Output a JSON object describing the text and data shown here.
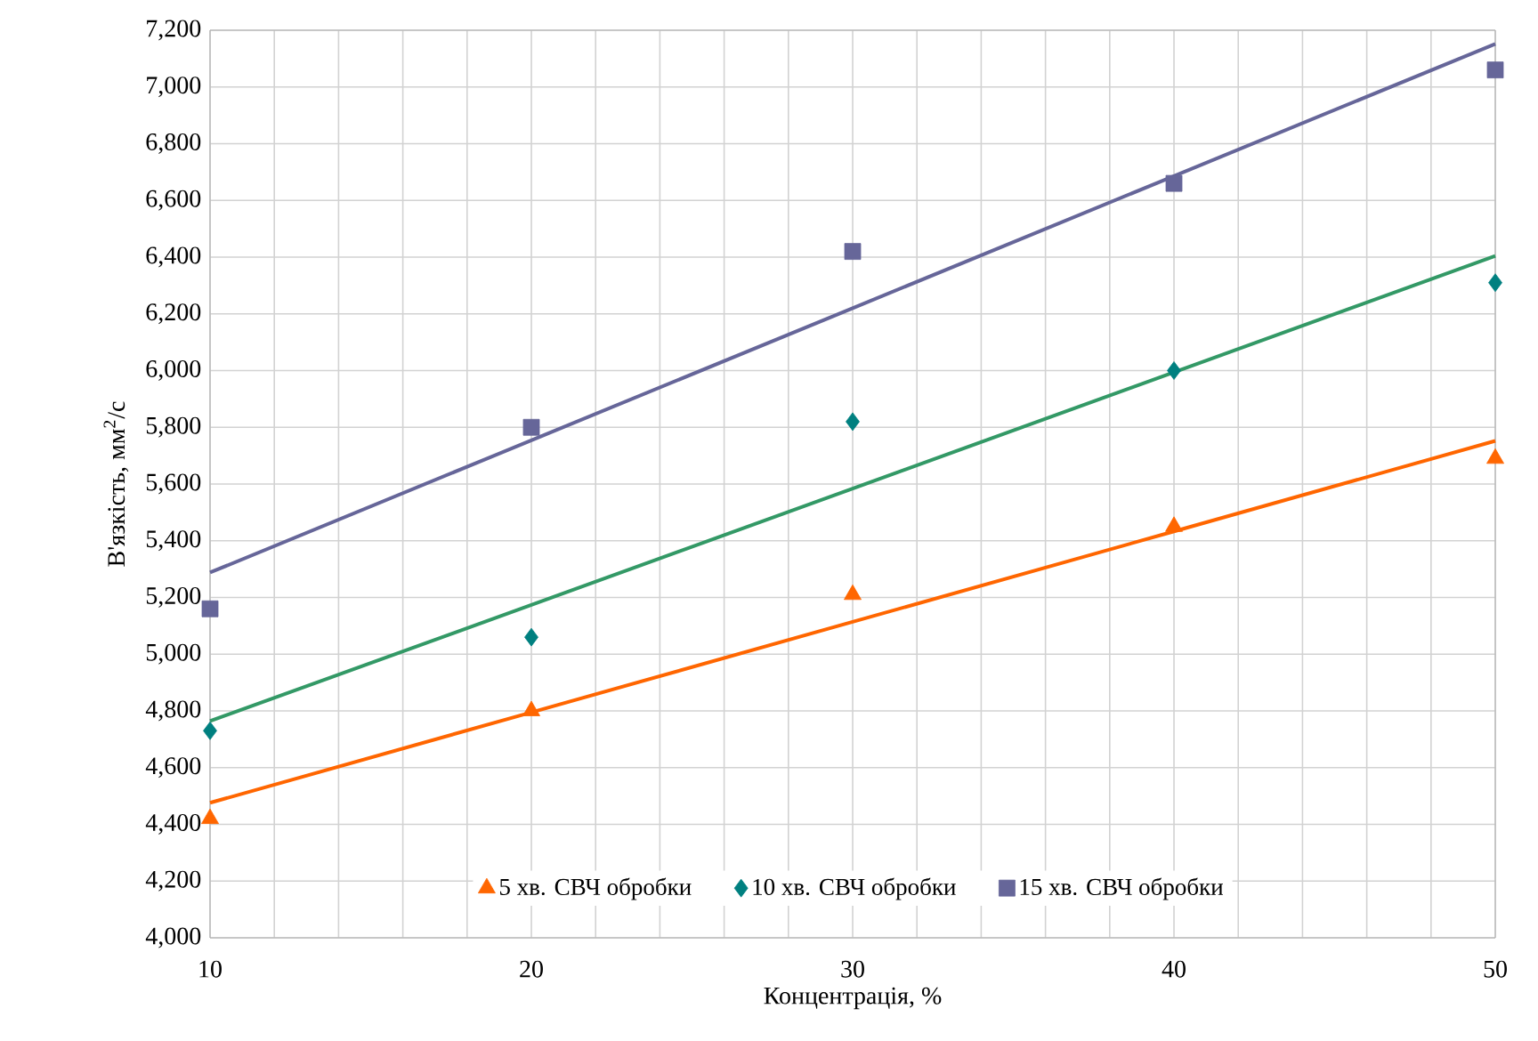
{
  "chart_data": {
    "type": "scatter",
    "xlabel": "Концентрація, %",
    "ylabel": "В'язкість, мм$^{2}$/с",
    "xlim": [
      10,
      50
    ],
    "ylim": [
      4000,
      7200
    ],
    "xticks": [
      10,
      {
        "value": 12,
        "label": null
      },
      {
        "value": 14,
        "label": null
      },
      {
        "value": 16,
        "label": null
      },
      {
        "value": 18,
        "label": null
      },
      20,
      {
        "value": 22,
        "label": null
      },
      {
        "value": 24,
        "label": null
      },
      {
        "value": 26,
        "label": null
      },
      {
        "value": 28,
        "label": null
      },
      30,
      {
        "value": 32,
        "label": null
      },
      {
        "value": 34,
        "label": null
      },
      {
        "value": 36,
        "label": null
      },
      {
        "value": 38,
        "label": null
      },
      40,
      {
        "value": 42,
        "label": null
      },
      {
        "value": 44,
        "label": null
      },
      {
        "value": 46,
        "label": null
      },
      {
        "value": 48,
        "label": null
      },
      50
    ],
    "yticks": [
      {
        "value": 4000,
        "label": "4,000"
      },
      {
        "value": 4200,
        "label": "4,200"
      },
      {
        "value": 4400,
        "label": "4,400"
      },
      {
        "value": 4600,
        "label": "4,600"
      },
      {
        "value": 4800,
        "label": "4,800"
      },
      {
        "value": 5000,
        "label": "5,000"
      },
      {
        "value": 5200,
        "label": "5,200"
      },
      {
        "value": 5400,
        "label": "5,400"
      },
      {
        "value": 5600,
        "label": "5,600"
      },
      {
        "value": 5800,
        "label": "5,800"
      },
      {
        "value": 6000,
        "label": "6,000"
      },
      {
        "value": 6200,
        "label": "6,200"
      },
      {
        "value": 6400,
        "label": "6,400"
      },
      {
        "value": 6600,
        "label": "6,600"
      },
      {
        "value": 6800,
        "label": "6,800"
      },
      {
        "value": 7000,
        "label": "7,000"
      },
      {
        "value": 7200,
        "label": "7,200"
      }
    ],
    "grid": true,
    "legend": "bottom",
    "x": [
      10,
      20,
      30,
      40,
      50
    ],
    "series": [
      {
        "name": "5 хв. СВЧ обробки",
        "color": "#ff6600",
        "marker": "triangle",
        "values": [
          4420,
          4800,
          5210,
          5450,
          5690
        ]
      },
      {
        "name": "10 хв. СВЧ обробки",
        "color": "#008080",
        "marker": "diamond",
        "values": [
          4730,
          5060,
          5820,
          6000,
          6310
        ]
      },
      {
        "name": "15 хв. СВЧ обробки",
        "color": "#666699",
        "marker": "square",
        "values": [
          5160,
          5800,
          6420,
          6660,
          7060
        ]
      },
      {
        "type": "line",
        "color": "#ff6600",
        "values": [
          4476,
          4795,
          5114,
          5433,
          5752
        ]
      },
      {
        "type": "line",
        "color": "#339966",
        "values": [
          4764,
          5174,
          5584,
          5994,
          6404
        ]
      },
      {
        "type": "line",
        "color": "#666699",
        "values": [
          5288,
          5754,
          6220,
          6686,
          7152
        ]
      }
    ]
  }
}
